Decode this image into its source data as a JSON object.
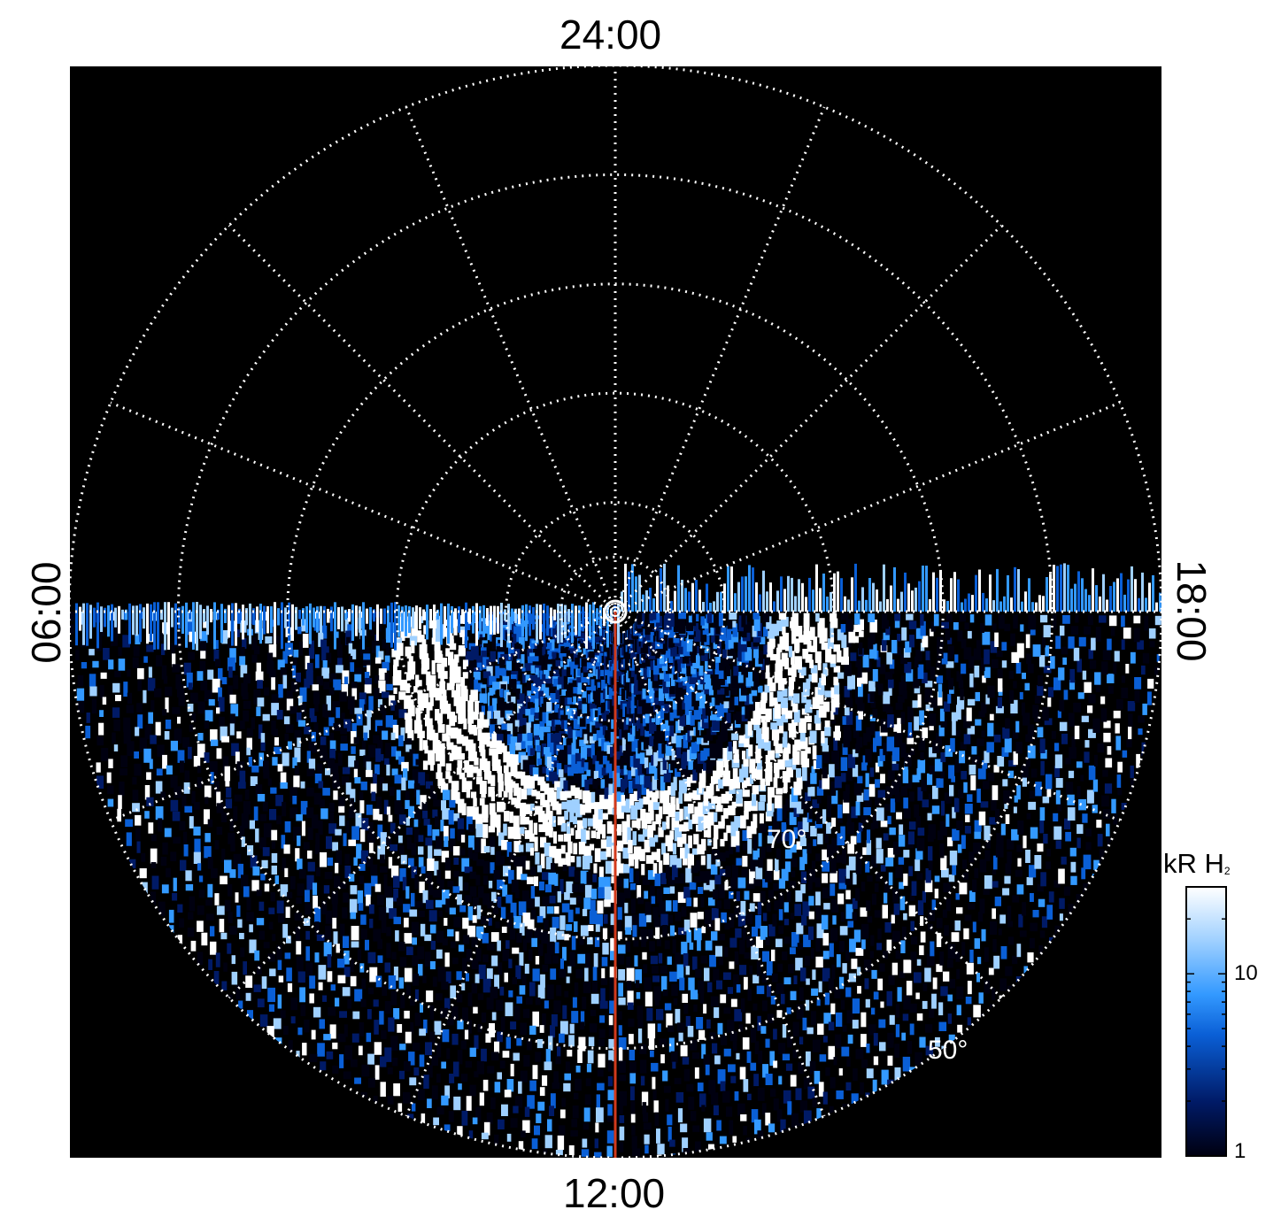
{
  "chart_data": {
    "type": "heatmap",
    "projection": "polar (north-pole view, local time vs latitude)",
    "local_time_labels": {
      "top": "24:00",
      "bottom": "12:00",
      "left": "06:00",
      "right": "18:00"
    },
    "latitude_labels": [
      "70°",
      "50°"
    ],
    "latitude_circles_deg": [
      85,
      80,
      70,
      60,
      50,
      40
    ],
    "meridian_spacing_hours": 1.5,
    "colorbar": {
      "title": "kR H",
      "title_subscript": "2",
      "ticks": [
        "10",
        "1"
      ],
      "scale": "log",
      "range": [
        1,
        30
      ],
      "colors": [
        "#000010",
        "#001a66",
        "#0a5fd6",
        "#3399ff",
        "#9fd0ff",
        "#ffffff"
      ]
    },
    "series": [
      {
        "label": "12:00 meridian",
        "color": "#d23a1c"
      }
    ],
    "auroral_oval": {
      "peak_latitude_deg": 73,
      "brightest_sector": "06:00–10:00 dawn side",
      "data_coverage": "06:00 → 12:00 → 18:00 hemisphere (dayside)"
    }
  }
}
